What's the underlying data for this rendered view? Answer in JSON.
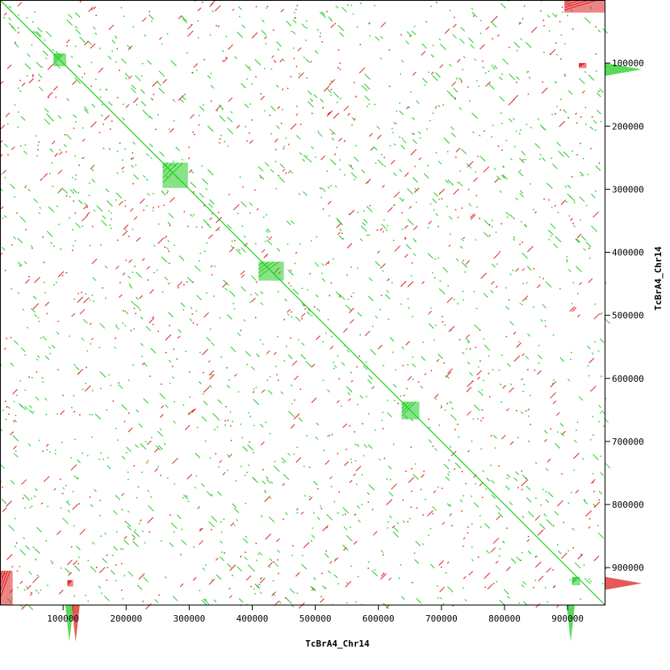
{
  "chart_data": {
    "type": "scatter",
    "title": "",
    "xlabel": "TcBrA4_Chr14",
    "ylabel": "TcBrA4_Chr14",
    "xlim": [
      0,
      960000
    ],
    "ylim": [
      0,
      960000
    ],
    "y_inverted": true,
    "x_ticks": [
      100000,
      200000,
      300000,
      400000,
      500000,
      600000,
      700000,
      800000,
      900000
    ],
    "x_tick_labels": [
      "100000",
      "200000",
      "300000",
      "400000",
      "500000",
      "600000",
      "700000",
      "800000",
      "900000"
    ],
    "y_ticks": [
      100000,
      200000,
      300000,
      400000,
      500000,
      600000,
      700000,
      800000,
      900000
    ],
    "y_tick_labels": [
      "100000",
      "200000",
      "300000",
      "400000",
      "500000",
      "600000",
      "700000",
      "800000",
      "900000"
    ],
    "grid": false,
    "colors": {
      "forward": "#22cc22",
      "reverse": "#dd2222",
      "axis": "#000000",
      "background": "#ffffff"
    },
    "series": [
      {
        "kind": "diagonal",
        "strand": "forward",
        "points": [
          [
            0,
            0
          ],
          [
            960000,
            960000
          ]
        ]
      },
      {
        "kind": "repeat-blocks",
        "strand": "forward",
        "blocks": [
          {
            "x": [
              85000,
              105000
            ],
            "y": [
              85000,
              105000
            ]
          },
          {
            "x": [
              258000,
              298000
            ],
            "y": [
              258000,
              298000
            ]
          },
          {
            "x": [
              410000,
              450000
            ],
            "y": [
              415000,
              445000
            ]
          },
          {
            "x": [
              637000,
              665000
            ],
            "y": [
              637000,
              665000
            ]
          },
          {
            "x": [
              907000,
              920000
            ],
            "y": [
              915000,
              928000
            ]
          }
        ]
      },
      {
        "kind": "repeat-blocks",
        "strand": "reverse",
        "blocks": [
          {
            "x": [
              918000,
              930000
            ],
            "y": [
              100000,
              108000
            ]
          },
          {
            "x": [
              107000,
              116000
            ],
            "y": [
              920000,
              930000
            ]
          },
          {
            "x": [
              895000,
              960000
            ],
            "y": [
              0,
              20000
            ]
          },
          {
            "x": [
              0,
              20000
            ],
            "y": [
              905000,
              960000
            ]
          }
        ]
      },
      {
        "kind": "density-profile",
        "axis": "y",
        "peaks": [
          {
            "y": 110000,
            "strand": "forward"
          },
          {
            "y": 925000,
            "strand": "reverse"
          }
        ]
      },
      {
        "kind": "density-profile",
        "axis": "x",
        "peaks": [
          {
            "x": 110000,
            "strand": "forward"
          },
          {
            "x": 120000,
            "strand": "reverse"
          },
          {
            "x": 905000,
            "strand": "forward"
          }
        ]
      }
    ]
  }
}
